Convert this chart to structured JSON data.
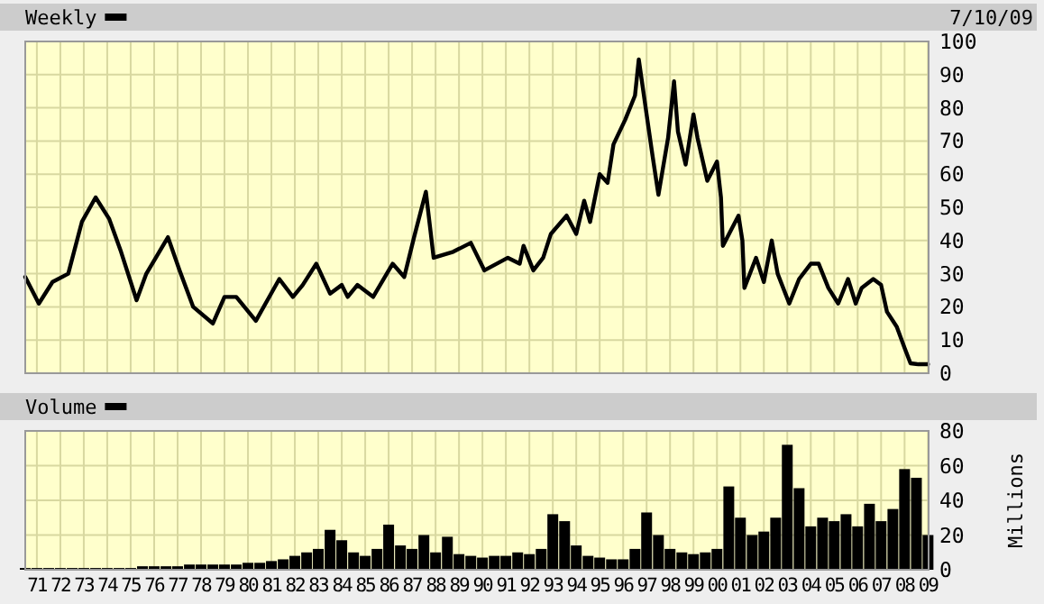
{
  "chart_data": [
    {
      "type": "line",
      "subtitle": "7/10/09",
      "legend": "top left",
      "grid": true,
      "tick_labels": "y",
      "xlim": [
        "1971-01-01",
        "2009-07-10"
      ],
      "ylim": [
        0,
        100
      ],
      "yticks": [
        0,
        10,
        20,
        30,
        40,
        50,
        60,
        70,
        80,
        90,
        100
      ],
      "xticks": [
        {
          "value": "1971-07-01",
          "label": null
        },
        {
          "value": "1972-07-01",
          "label": null
        },
        {
          "value": "1973-07-01",
          "label": null
        },
        {
          "value": "1974-07-01",
          "label": null
        },
        {
          "value": "1975-07-01",
          "label": null
        },
        {
          "value": "1976-07-01",
          "label": null
        },
        {
          "value": "1977-07-01",
          "label": null
        },
        {
          "value": "1978-07-01",
          "label": null
        },
        {
          "value": "1979-07-01",
          "label": null
        },
        {
          "value": "1980-07-01",
          "label": null
        },
        {
          "value": "1981-07-01",
          "label": null
        },
        {
          "value": "1982-07-01",
          "label": null
        },
        {
          "value": "1983-07-01",
          "label": null
        },
        {
          "value": "1984-07-01",
          "label": null
        },
        {
          "value": "1985-07-01",
          "label": null
        },
        {
          "value": "1986-07-01",
          "label": null
        },
        {
          "value": "1987-07-01",
          "label": null
        },
        {
          "value": "1988-07-01",
          "label": null
        },
        {
          "value": "1989-07-01",
          "label": null
        },
        {
          "value": "1990-07-01",
          "label": null
        },
        {
          "value": "1991-07-01",
          "label": null
        },
        {
          "value": "1992-07-01",
          "label": null
        },
        {
          "value": "1993-07-01",
          "label": null
        },
        {
          "value": "1994-07-01",
          "label": null
        },
        {
          "value": "1995-07-01",
          "label": null
        },
        {
          "value": "1996-07-01",
          "label": null
        },
        {
          "value": "1997-07-01",
          "label": null
        },
        {
          "value": "1998-07-01",
          "label": null
        },
        {
          "value": "1999-07-01",
          "label": null
        },
        {
          "value": "2000-07-01",
          "label": null
        },
        {
          "value": "2001-07-01",
          "label": null
        },
        {
          "value": "2002-07-01",
          "label": null
        },
        {
          "value": "2003-07-01",
          "label": null
        },
        {
          "value": "2004-07-01",
          "label": null
        },
        {
          "value": "2005-07-01",
          "label": null
        },
        {
          "value": "2006-07-01",
          "label": null
        },
        {
          "value": "2007-07-01",
          "label": null
        },
        {
          "value": "2008-07-01",
          "label": null
        },
        {
          "value": "2009-07-01",
          "label": null
        }
      ],
      "series": [
        {
          "name": "Weekly",
          "color": "#000000",
          "x": [
            "1971-01",
            "1971-08",
            "1972-03",
            "1972-11",
            "1973-06",
            "1974-01",
            "1974-08",
            "1975-02",
            "1975-10",
            "1976-03",
            "1977-02",
            "1977-08",
            "1978-03",
            "1979-01",
            "1979-07",
            "1980-01",
            "1980-11",
            "1981-11",
            "1982-06",
            "1982-11",
            "1983-06",
            "1984-01",
            "1984-07",
            "1984-10",
            "1985-03",
            "1985-11",
            "1986-09",
            "1987-03",
            "1987-08",
            "1988-02",
            "1988-06",
            "1989-04",
            "1990-01",
            "1990-08",
            "1991-08",
            "1992-02",
            "1992-04",
            "1992-09",
            "1993-02",
            "1993-06",
            "1994-02",
            "1994-07",
            "1994-11",
            "1995-02",
            "1995-07",
            "1995-11",
            "1996-02",
            "1996-08",
            "1997-01",
            "1997-03",
            "1997-07",
            "1997-10",
            "1998-01",
            "1998-06",
            "1998-09",
            "1998-11",
            "1999-03",
            "1999-07",
            "1999-09",
            "2000-02",
            "2000-07",
            "2000-09",
            "2000-10",
            "2001-06",
            "2001-08",
            "2001-09",
            "2002-03",
            "2002-07",
            "2002-11",
            "2003-02",
            "2003-08",
            "2004-01",
            "2004-07",
            "2004-11",
            "2005-04",
            "2005-09",
            "2006-02",
            "2006-06",
            "2006-09",
            "2007-03",
            "2007-07",
            "2007-10",
            "2008-03",
            "2008-07",
            "2008-10",
            "2009-02",
            "2009-07"
          ],
          "values": [
            29,
            21,
            27.5,
            30,
            45.6,
            53,
            46.5,
            36.6,
            22,
            30,
            41,
            31,
            20,
            15,
            23,
            23,
            15.8,
            28.4,
            23,
            26.6,
            33,
            24,
            26.6,
            23,
            26.6,
            23,
            33,
            29,
            41,
            54.7,
            34.8,
            36.6,
            39.3,
            31,
            34.8,
            33,
            38.4,
            31,
            34.8,
            42,
            47.5,
            42,
            52,
            45.6,
            60,
            57.4,
            69,
            76.4,
            83.7,
            94.6,
            78,
            65.6,
            53.8,
            71,
            88,
            72.8,
            62.9,
            78,
            71,
            58,
            63.8,
            53,
            38.4,
            47.5,
            40,
            25.7,
            34.8,
            27.5,
            40,
            30,
            21,
            28.4,
            33,
            33,
            25.7,
            21,
            28.4,
            21,
            25.7,
            28.4,
            26.6,
            18.5,
            14,
            7.6,
            3,
            2.7,
            2.7
          ]
        }
      ]
    },
    {
      "type": "bar",
      "ylabel": "Millions",
      "legend": "top left",
      "grid": true,
      "xlim": [
        "1971-01-01",
        "2009-07-10"
      ],
      "ylim": [
        0,
        80
      ],
      "yticks": [
        0,
        20,
        40,
        60,
        80
      ],
      "xticks": [
        {
          "value": "1971-07-01",
          "label": "71"
        },
        {
          "value": "1972-07-01",
          "label": "72"
        },
        {
          "value": "1973-07-01",
          "label": "73"
        },
        {
          "value": "1974-07-01",
          "label": "74"
        },
        {
          "value": "1975-07-01",
          "label": "75"
        },
        {
          "value": "1976-07-01",
          "label": "76"
        },
        {
          "value": "1977-07-01",
          "label": "77"
        },
        {
          "value": "1978-07-01",
          "label": "78"
        },
        {
          "value": "1979-07-01",
          "label": "79"
        },
        {
          "value": "1980-07-01",
          "label": "80"
        },
        {
          "value": "1981-07-01",
          "label": "81"
        },
        {
          "value": "1982-07-01",
          "label": "82"
        },
        {
          "value": "1983-07-01",
          "label": "83"
        },
        {
          "value": "1984-07-01",
          "label": "84"
        },
        {
          "value": "1985-07-01",
          "label": "85"
        },
        {
          "value": "1986-07-01",
          "label": "86"
        },
        {
          "value": "1987-07-01",
          "label": "87"
        },
        {
          "value": "1988-07-01",
          "label": "88"
        },
        {
          "value": "1989-07-01",
          "label": "89"
        },
        {
          "value": "1990-07-01",
          "label": "90"
        },
        {
          "value": "1991-07-01",
          "label": "91"
        },
        {
          "value": "1992-07-01",
          "label": "92"
        },
        {
          "value": "1993-07-01",
          "label": "93"
        },
        {
          "value": "1994-07-01",
          "label": "94"
        },
        {
          "value": "1995-07-01",
          "label": "95"
        },
        {
          "value": "1996-07-01",
          "label": "96"
        },
        {
          "value": "1997-07-01",
          "label": "97"
        },
        {
          "value": "1998-07-01",
          "label": "98"
        },
        {
          "value": "1999-07-01",
          "label": "99"
        },
        {
          "value": "2000-07-01",
          "label": "00"
        },
        {
          "value": "2001-07-01",
          "label": "01"
        },
        {
          "value": "2002-07-01",
          "label": "02"
        },
        {
          "value": "2003-07-01",
          "label": "03"
        },
        {
          "value": "2004-07-01",
          "label": "04"
        },
        {
          "value": "2005-07-01",
          "label": "05"
        },
        {
          "value": "2006-07-01",
          "label": "06"
        },
        {
          "value": "2007-07-01",
          "label": "07"
        },
        {
          "value": "2008-07-01",
          "label": "08"
        },
        {
          "value": "2009-07-01",
          "label": "09"
        }
      ],
      "series": [
        {
          "name": "Volume",
          "color": "#000000",
          "x": [
            "1971-01",
            "1971-07",
            "1972-01",
            "1972-07",
            "1973-01",
            "1973-07",
            "1974-01",
            "1974-07",
            "1975-01",
            "1975-07",
            "1976-01",
            "1976-07",
            "1977-01",
            "1977-07",
            "1978-01",
            "1978-07",
            "1979-01",
            "1979-07",
            "1980-01",
            "1980-07",
            "1981-01",
            "1981-07",
            "1982-01",
            "1982-07",
            "1983-01",
            "1983-07",
            "1984-01",
            "1984-07",
            "1985-01",
            "1985-07",
            "1986-01",
            "1986-07",
            "1987-01",
            "1987-07",
            "1988-01",
            "1988-07",
            "1989-01",
            "1989-07",
            "1990-01",
            "1990-07",
            "1991-01",
            "1991-07",
            "1992-01",
            "1992-07",
            "1993-01",
            "1993-07",
            "1994-01",
            "1994-07",
            "1995-01",
            "1995-07",
            "1996-01",
            "1996-07",
            "1997-01",
            "1997-07",
            "1998-01",
            "1998-07",
            "1999-01",
            "1999-07",
            "2000-01",
            "2000-07",
            "2001-01",
            "2001-07",
            "2002-01",
            "2002-07",
            "2003-01",
            "2003-07",
            "2004-01",
            "2004-07",
            "2005-01",
            "2005-07",
            "2006-01",
            "2006-07",
            "2007-01",
            "2007-07",
            "2008-01",
            "2008-07",
            "2009-01",
            "2009-07"
          ],
          "values": [
            1,
            1,
            1,
            1,
            1,
            1,
            1,
            1,
            1,
            1,
            2,
            2,
            2,
            2,
            3,
            3,
            3,
            3,
            3,
            4,
            4,
            5,
            6,
            8,
            10,
            12,
            23,
            17,
            10,
            8,
            12,
            26,
            14,
            12,
            20,
            10,
            19,
            9,
            8,
            7,
            8,
            8,
            10,
            9,
            12,
            32,
            28,
            14,
            8,
            7,
            6,
            6,
            12,
            33,
            20,
            12,
            10,
            9,
            10,
            12,
            48,
            30,
            20,
            22,
            30,
            72,
            47,
            25,
            30,
            28,
            32,
            25,
            38,
            28,
            35,
            58,
            53,
            20
          ]
        }
      ]
    }
  ]
}
